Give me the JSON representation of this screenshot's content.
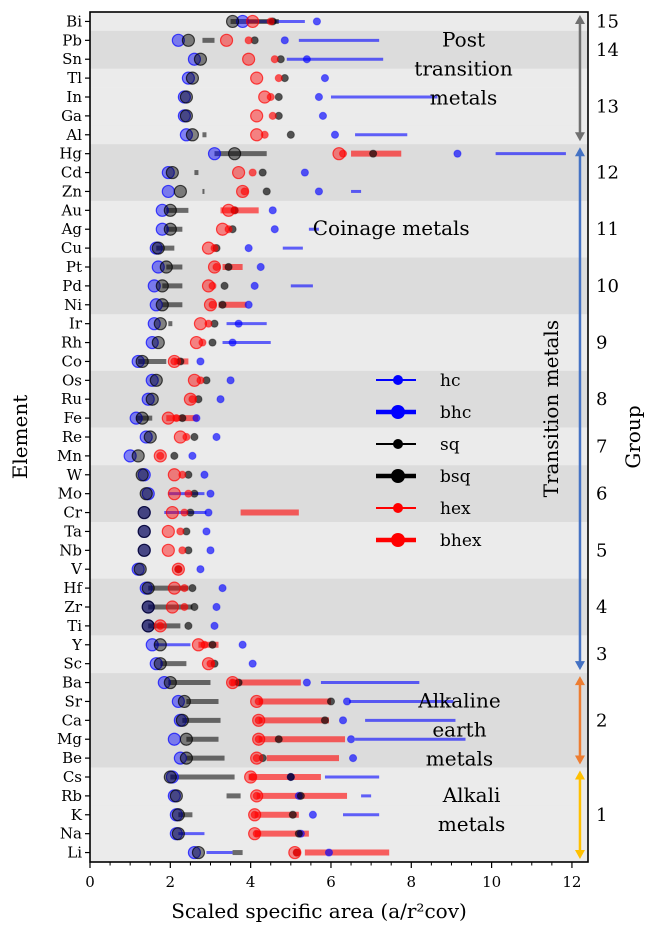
{
  "chart_data": {
    "type": "scatter",
    "xlabel": "Scaled specific area (a/r²cov)",
    "ylabel": "Element",
    "y2label": "Group",
    "xlim": [
      0,
      12.4
    ],
    "xticks": [
      0,
      2,
      4,
      6,
      8,
      10,
      12
    ],
    "categories": [
      "Bi",
      "Pb",
      "Sn",
      "Tl",
      "In",
      "Ga",
      "Al",
      "Hg",
      "Cd",
      "Zn",
      "Au",
      "Ag",
      "Cu",
      "Pt",
      "Pd",
      "Ni",
      "Ir",
      "Rh",
      "Co",
      "Os",
      "Ru",
      "Fe",
      "Re",
      "Mn",
      "W",
      "Mo",
      "Cr",
      "Ta",
      "Nb",
      "V",
      "Hf",
      "Zr",
      "Ti",
      "Y",
      "Sc",
      "Ba",
      "Sr",
      "Ca",
      "Mg",
      "Be",
      "Cs",
      "Rb",
      "K",
      "Na",
      "Li"
    ],
    "band_shade": [
      1,
      0,
      0,
      1,
      1,
      1,
      1,
      0,
      0,
      0,
      1,
      1,
      1,
      0,
      0,
      0,
      1,
      1,
      1,
      0,
      0,
      0,
      1,
      1,
      0,
      0,
      0,
      1,
      1,
      1,
      0,
      0,
      0,
      1,
      1,
      0,
      0,
      0,
      0,
      0,
      1,
      1,
      1,
      1,
      1
    ],
    "series": [
      {
        "name": "hc",
        "color": "#0000ff",
        "values": [
          5.65,
          4.85,
          5.4,
          5.85,
          5.7,
          5.8,
          6.1,
          9.15,
          5.35,
          5.7,
          4.55,
          4.6,
          3.95,
          4.25,
          4.1,
          3.95,
          3.7,
          3.55,
          2.75,
          3.5,
          3.25,
          2.65,
          3.15,
          2.55,
          2.85,
          3.0,
          2.95,
          2.9,
          3.0,
          2.75,
          3.3,
          3.15,
          3.1,
          3.8,
          4.05,
          5.4,
          6.4,
          6.3,
          6.5,
          6.55,
          5.0,
          5.2,
          5.55,
          5.25,
          5.95
        ]
      },
      {
        "name": "bhc",
        "color": "#0000ff",
        "values": [
          3.8,
          2.2,
          2.6,
          2.45,
          2.35,
          2.35,
          2.4,
          3.1,
          1.95,
          1.95,
          1.8,
          1.8,
          1.65,
          1.7,
          1.6,
          1.65,
          1.6,
          1.55,
          1.2,
          1.55,
          1.45,
          1.15,
          1.4,
          1.0,
          1.35,
          1.45,
          1.35,
          1.35,
          1.35,
          1.2,
          1.4,
          1.45,
          1.45,
          1.55,
          1.65,
          1.85,
          2.2,
          2.25,
          2.1,
          2.25,
          2.05,
          2.1,
          2.15,
          2.15,
          2.6
        ]
      },
      {
        "name": "sq",
        "color": "#000000",
        "values": [
          4.55,
          4.1,
          4.75,
          4.85,
          4.7,
          4.7,
          5.0,
          7.05,
          4.3,
          4.4,
          3.6,
          3.55,
          3.15,
          3.45,
          3.35,
          3.3,
          3.1,
          3.05,
          2.25,
          2.9,
          2.7,
          2.3,
          2.6,
          2.1,
          2.45,
          2.6,
          2.5,
          2.4,
          2.45,
          2.2,
          2.55,
          2.6,
          2.45,
          3.05,
          3.1,
          3.7,
          6.0,
          5.85,
          4.7,
          4.3,
          5.0,
          5.25,
          5.05,
          5.2,
          5.15
        ]
      },
      {
        "name": "bsq",
        "color": "#000000",
        "values": [
          3.55,
          2.45,
          2.75,
          2.55,
          2.4,
          2.4,
          2.55,
          3.6,
          2.05,
          2.25,
          2.0,
          2.0,
          1.7,
          1.9,
          1.8,
          1.8,
          1.75,
          1.7,
          1.3,
          1.65,
          1.55,
          1.3,
          1.5,
          1.2,
          1.3,
          1.4,
          1.35,
          1.35,
          1.35,
          1.25,
          1.45,
          1.45,
          1.45,
          1.75,
          1.75,
          2.0,
          2.35,
          2.3,
          2.4,
          2.4,
          2.0,
          2.15,
          2.2,
          2.2,
          2.7
        ]
      },
      {
        "name": "hex",
        "color": "#ff0000",
        "values": [
          4.5,
          3.95,
          4.6,
          4.7,
          4.5,
          4.55,
          4.35,
          6.3,
          4.05,
          3.85,
          3.6,
          3.45,
          3.1,
          3.15,
          3.05,
          3.05,
          2.95,
          2.8,
          2.1,
          2.75,
          2.55,
          2.15,
          2.4,
          1.75,
          2.3,
          2.45,
          2.35,
          2.25,
          2.3,
          2.2,
          2.35,
          2.35,
          1.75,
          2.85,
          3.0,
          3.55,
          4.2,
          4.2,
          4.2,
          4.15,
          4.05,
          4.15,
          4.1,
          4.15,
          5.15
        ]
      },
      {
        "name": "bhex",
        "color": "#ff0000",
        "values": [
          4.05,
          3.4,
          3.95,
          4.15,
          4.35,
          4.15,
          4.15,
          6.2,
          3.7,
          3.8,
          3.45,
          3.3,
          2.95,
          3.1,
          2.95,
          3.0,
          2.75,
          2.65,
          2.1,
          2.6,
          2.5,
          1.95,
          2.25,
          1.75,
          2.1,
          2.1,
          2.05,
          1.95,
          1.95,
          2.2,
          2.1,
          2.05,
          1.75,
          2.7,
          2.95,
          3.55,
          4.15,
          4.2,
          4.2,
          4.15,
          4.0,
          4.15,
          4.1,
          4.1,
          5.1
        ]
      }
    ],
    "ranges": [
      {
        "row": "Bi",
        "series": "hc",
        "x": [
          3.9,
          5.35
        ]
      },
      {
        "row": "Bi",
        "series": "sq",
        "x": [
          3.5,
          4.7
        ]
      },
      {
        "row": "Pb",
        "series": "hc",
        "x": [
          5.2,
          7.2
        ]
      },
      {
        "row": "Pb",
        "series": "sq",
        "x": [
          2.8,
          3.1
        ]
      },
      {
        "row": "Sn",
        "series": "hc",
        "x": [
          4.9,
          7.3
        ]
      },
      {
        "row": "Al",
        "series": "hc",
        "x": [
          6.6,
          7.9
        ]
      },
      {
        "row": "Al",
        "series": "sq",
        "x": [
          2.8,
          2.9
        ]
      },
      {
        "row": "In",
        "series": "hc",
        "x": [
          6.0,
          8.65
        ]
      },
      {
        "row": "Hg",
        "series": "hc",
        "x": [
          10.1,
          11.85
        ]
      },
      {
        "row": "Hg",
        "series": "sq",
        "x": [
          3.1,
          4.4
        ]
      },
      {
        "row": "Hg",
        "series": "hex",
        "x": [
          6.5,
          7.75
        ]
      },
      {
        "row": "Cd",
        "series": "sq",
        "x": [
          2.6,
          2.7
        ]
      },
      {
        "row": "Zn",
        "series": "hc",
        "x": [
          6.5,
          6.75
        ]
      },
      {
        "row": "Zn",
        "series": "sq",
        "x": [
          2.8,
          2.85
        ]
      },
      {
        "row": "Au",
        "series": "sq",
        "x": [
          1.9,
          2.45
        ]
      },
      {
        "row": "Au",
        "series": "hex",
        "x": [
          3.25,
          4.2
        ]
      },
      {
        "row": "Ag",
        "series": "hc",
        "x": [
          5.45,
          5.7
        ]
      },
      {
        "row": "Ag",
        "series": "sq",
        "x": [
          1.9,
          2.3
        ]
      },
      {
        "row": "Cu",
        "series": "hc",
        "x": [
          4.8,
          5.3
        ]
      },
      {
        "row": "Cu",
        "series": "sq",
        "x": [
          1.65,
          2.1
        ]
      },
      {
        "row": "Pt",
        "series": "sq",
        "x": [
          1.9,
          2.3
        ]
      },
      {
        "row": "Pt",
        "series": "hex",
        "x": [
          3.3,
          3.8
        ]
      },
      {
        "row": "Pd",
        "series": "hc",
        "x": [
          5.0,
          5.55
        ]
      },
      {
        "row": "Pd",
        "series": "sq",
        "x": [
          1.8,
          2.3
        ]
      },
      {
        "row": "Ni",
        "series": "sq",
        "x": [
          1.8,
          2.3
        ]
      },
      {
        "row": "Ni",
        "series": "hex",
        "x": [
          3.2,
          3.9
        ]
      },
      {
        "row": "Ir",
        "series": "hc",
        "x": [
          3.4,
          4.4
        ]
      },
      {
        "row": "Ir",
        "series": "sq",
        "x": [
          1.95,
          2.05
        ]
      },
      {
        "row": "Rh",
        "series": "hc",
        "x": [
          3.3,
          4.5
        ]
      },
      {
        "row": "Co",
        "series": "sq",
        "x": [
          1.2,
          1.9
        ]
      },
      {
        "row": "Co",
        "series": "hex",
        "x": [
          2.1,
          2.45
        ]
      },
      {
        "row": "Fe",
        "series": "sq",
        "x": [
          1.15,
          1.55
        ]
      },
      {
        "row": "Fe",
        "series": "hex",
        "x": [
          1.9,
          2.7
        ]
      },
      {
        "row": "Mo",
        "series": "hc",
        "x": [
          1.95,
          2.85
        ]
      },
      {
        "row": "Cr",
        "series": "hc",
        "x": [
          1.85,
          2.9
        ]
      },
      {
        "row": "Cr",
        "series": "hex",
        "x": [
          3.75,
          5.2
        ]
      },
      {
        "row": "Hf",
        "series": "sq",
        "x": [
          1.45,
          2.45
        ]
      },
      {
        "row": "Zr",
        "series": "sq",
        "x": [
          1.45,
          2.55
        ]
      },
      {
        "row": "Ti",
        "series": "sq",
        "x": [
          1.45,
          2.25
        ]
      },
      {
        "row": "Y",
        "series": "hc",
        "x": [
          1.6,
          2.5
        ]
      },
      {
        "row": "Y",
        "series": "hex",
        "x": [
          2.7,
          3.2
        ]
      },
      {
        "row": "Sc",
        "series": "sq",
        "x": [
          1.75,
          2.4
        ]
      },
      {
        "row": "Ba",
        "series": "hc",
        "x": [
          5.75,
          8.2
        ]
      },
      {
        "row": "Ba",
        "series": "sq",
        "x": [
          1.95,
          3.0
        ]
      },
      {
        "row": "Ba",
        "series": "hex",
        "x": [
          3.5,
          5.25
        ]
      },
      {
        "row": "Sr",
        "series": "hc",
        "x": [
          6.45,
          9.05
        ]
      },
      {
        "row": "Sr",
        "series": "sq",
        "x": [
          2.4,
          3.2
        ]
      },
      {
        "row": "Sr",
        "series": "hex",
        "x": [
          4.2,
          6.0
        ]
      },
      {
        "row": "Ca",
        "series": "hc",
        "x": [
          6.85,
          9.1
        ]
      },
      {
        "row": "Ca",
        "series": "sq",
        "x": [
          2.3,
          3.25
        ]
      },
      {
        "row": "Ca",
        "series": "hex",
        "x": [
          4.2,
          5.95
        ]
      },
      {
        "row": "Mg",
        "series": "hc",
        "x": [
          6.6,
          9.35
        ]
      },
      {
        "row": "Mg",
        "series": "sq",
        "x": [
          2.4,
          3.2
        ]
      },
      {
        "row": "Mg",
        "series": "hex",
        "x": [
          4.2,
          6.35
        ]
      },
      {
        "row": "Be",
        "series": "sq",
        "x": [
          2.4,
          3.35
        ]
      },
      {
        "row": "Be",
        "series": "hex",
        "x": [
          4.4,
          6.2
        ]
      },
      {
        "row": "Cs",
        "series": "hc",
        "x": [
          5.85,
          7.2
        ]
      },
      {
        "row": "Cs",
        "series": "sq",
        "x": [
          2.0,
          3.6
        ]
      },
      {
        "row": "Cs",
        "series": "hex",
        "x": [
          3.95,
          5.75
        ]
      },
      {
        "row": "Rb",
        "series": "hc",
        "x": [
          6.75,
          7.0
        ]
      },
      {
        "row": "Rb",
        "series": "sq",
        "x": [
          3.4,
          3.75
        ]
      },
      {
        "row": "Rb",
        "series": "hex",
        "x": [
          4.15,
          6.4
        ]
      },
      {
        "row": "K",
        "series": "hc",
        "x": [
          6.3,
          7.2
        ]
      },
      {
        "row": "K",
        "series": "sq",
        "x": [
          2.2,
          2.55
        ]
      },
      {
        "row": "K",
        "series": "hex",
        "x": [
          4.1,
          5.2
        ]
      },
      {
        "row": "Na",
        "series": "hc",
        "x": [
          2.2,
          2.85
        ]
      },
      {
        "row": "Na",
        "series": "hex",
        "x": [
          4.1,
          5.45
        ]
      },
      {
        "row": "Li",
        "series": "hc",
        "x": [
          2.9,
          3.55
        ]
      },
      {
        "row": "Li",
        "series": "sq",
        "x": [
          3.55,
          3.8
        ]
      },
      {
        "row": "Li",
        "series": "hex",
        "x": [
          5.35,
          7.45
        ]
      }
    ],
    "group_labels": [
      {
        "label": "15",
        "rows": [
          "Bi"
        ]
      },
      {
        "label": "14",
        "rows": [
          "Pb",
          "Sn"
        ]
      },
      {
        "label": "13",
        "rows": [
          "Tl",
          "In",
          "Ga",
          "Al"
        ]
      },
      {
        "label": "12",
        "rows": [
          "Hg",
          "Cd",
          "Zn"
        ]
      },
      {
        "label": "11",
        "rows": [
          "Au",
          "Ag",
          "Cu"
        ]
      },
      {
        "label": "10",
        "rows": [
          "Pt",
          "Pd",
          "Ni"
        ]
      },
      {
        "label": "9",
        "rows": [
          "Ir",
          "Rh",
          "Co"
        ]
      },
      {
        "label": "8",
        "rows": [
          "Os",
          "Ru",
          "Fe"
        ]
      },
      {
        "label": "7",
        "rows": [
          "Re",
          "Mn"
        ]
      },
      {
        "label": "6",
        "rows": [
          "W",
          "Mo",
          "Cr"
        ]
      },
      {
        "label": "5",
        "rows": [
          "Ta",
          "Nb",
          "V"
        ]
      },
      {
        "label": "4",
        "rows": [
          "Hf",
          "Zr",
          "Ti"
        ]
      },
      {
        "label": "3",
        "rows": [
          "Y",
          "Sc"
        ]
      },
      {
        "label": "2",
        "rows": [
          "Ba",
          "Sr",
          "Ca",
          "Mg",
          "Be"
        ]
      },
      {
        "label": "1",
        "rows": [
          "Cs",
          "Rb",
          "K",
          "Na",
          "Li"
        ]
      }
    ],
    "categories_brackets": [
      {
        "name": "Post transition metals",
        "from": "Bi",
        "to": "Al",
        "color": "#707070"
      },
      {
        "name": "Transition metals",
        "from": "Hg",
        "to": "Sc",
        "color": "#4472c4"
      },
      {
        "name": "Alkaline earth metals",
        "from": "Ba",
        "to": "Be",
        "color": "#ed7d31"
      },
      {
        "name": "Alkali metals",
        "from": "Cs",
        "to": "Li",
        "color": "#ffc000"
      }
    ],
    "annotations": [
      {
        "lines": [
          "Post",
          "transition",
          "metals"
        ],
        "anchor": "Pb",
        "x": 9.3
      },
      {
        "lines": [
          "Coinage metals"
        ],
        "anchor": "Ag",
        "x": 7.5
      },
      {
        "lines": [
          "Alkaline",
          "earth",
          "metals"
        ],
        "anchor": "Sr",
        "x": 9.2
      },
      {
        "lines": [
          "Alkali",
          "metals"
        ],
        "anchor": "Rb",
        "x": 9.5
      }
    ],
    "legend": {
      "position": "center-right",
      "entries": [
        "hc",
        "bhc",
        "sq",
        "bsq",
        "hex",
        "bhex"
      ]
    },
    "colors": {
      "band_dark": "#dcdcdc",
      "band_light": "#ebebeb",
      "blue": "#0000ff",
      "black": "#000000",
      "red": "#ff0000"
    }
  }
}
